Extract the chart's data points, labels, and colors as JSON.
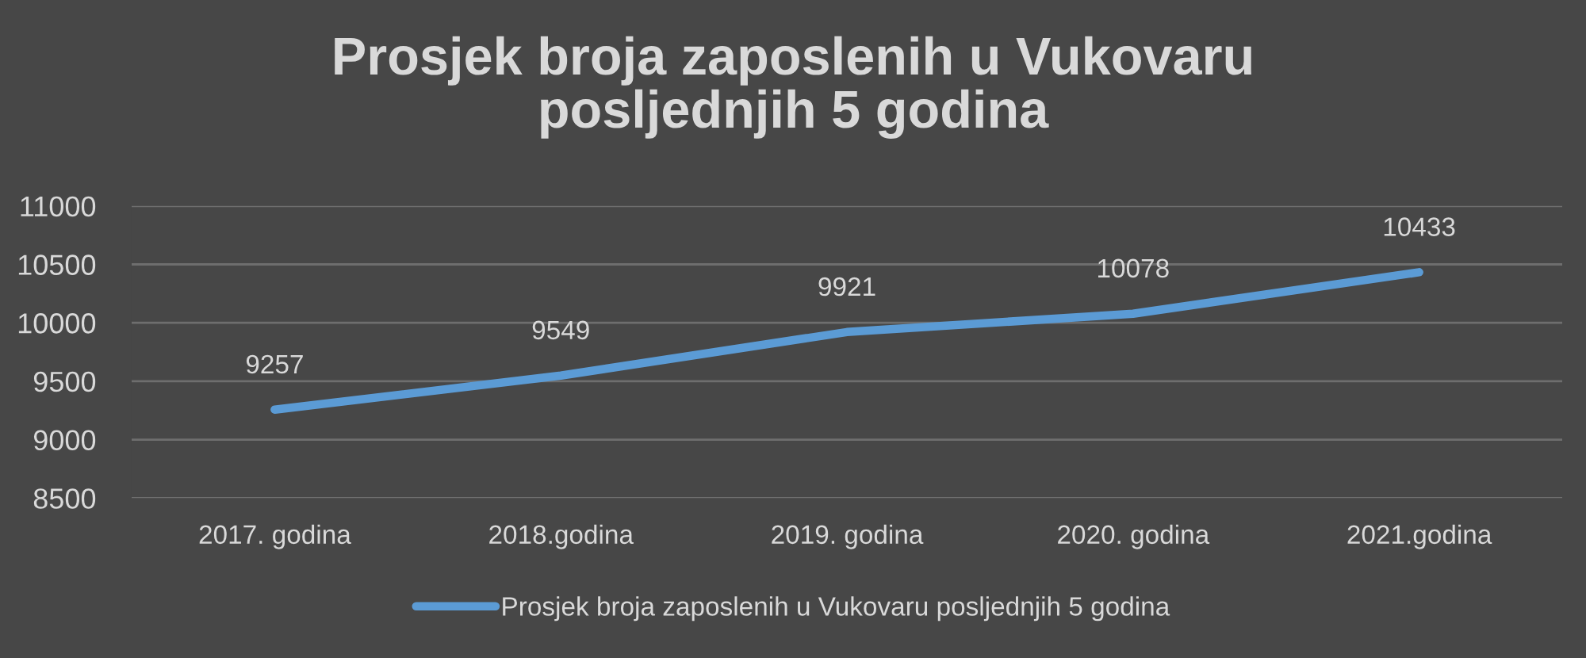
{
  "chart_data": {
    "type": "line",
    "title": "Prosjek broja zaposlenih u Vukovaru\nposljednjih 5 godina",
    "categories": [
      "2017. godina",
      "2018.godina",
      "2019. godina",
      "2020. godina",
      "2021.godina"
    ],
    "series": [
      {
        "name": "Prosjek broja zaposlenih u Vukovaru posljednjih 5 godina",
        "color": "#5b9bd5",
        "values": [
          9257,
          9549,
          9921,
          10078,
          10433
        ]
      }
    ],
    "ylim": [
      8500,
      11000
    ],
    "yticks": [
      8500,
      9000,
      9500,
      10000,
      10500,
      11000
    ],
    "grid": "y",
    "legend": "bottom",
    "data_labels": true,
    "marker": "none",
    "line_style": "solid"
  }
}
